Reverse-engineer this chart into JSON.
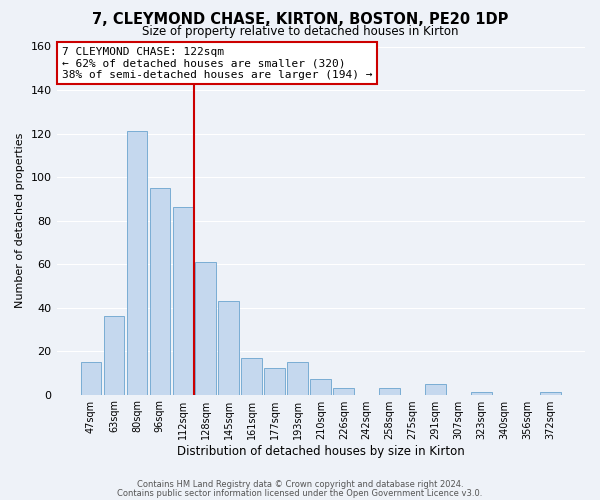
{
  "title": "7, CLEYMOND CHASE, KIRTON, BOSTON, PE20 1DP",
  "subtitle": "Size of property relative to detached houses in Kirton",
  "xlabel": "Distribution of detached houses by size in Kirton",
  "ylabel": "Number of detached properties",
  "bar_color": "#c5d8ee",
  "bar_edge_color": "#7aadd4",
  "background_color": "#eef2f8",
  "plot_bg_color": "#eef2f8",
  "grid_color": "#ffffff",
  "bin_labels": [
    "47sqm",
    "63sqm",
    "80sqm",
    "96sqm",
    "112sqm",
    "128sqm",
    "145sqm",
    "161sqm",
    "177sqm",
    "193sqm",
    "210sqm",
    "226sqm",
    "242sqm",
    "258sqm",
    "275sqm",
    "291sqm",
    "307sqm",
    "323sqm",
    "340sqm",
    "356sqm",
    "372sqm"
  ],
  "bar_heights": [
    15,
    36,
    121,
    95,
    86,
    61,
    43,
    17,
    12,
    15,
    7,
    3,
    0,
    3,
    0,
    5,
    0,
    1,
    0,
    0,
    1
  ],
  "vline_x": 4.5,
  "vline_color": "#cc0000",
  "annotation_line1": "7 CLEYMOND CHASE: 122sqm",
  "annotation_line2": "← 62% of detached houses are smaller (320)",
  "annotation_line3": "38% of semi-detached houses are larger (194) →",
  "annotation_box_color": "#ffffff",
  "annotation_box_edge": "#cc0000",
  "ylim": [
    0,
    160
  ],
  "yticks": [
    0,
    20,
    40,
    60,
    80,
    100,
    120,
    140,
    160
  ],
  "footer_line1": "Contains HM Land Registry data © Crown copyright and database right 2024.",
  "footer_line2": "Contains public sector information licensed under the Open Government Licence v3.0."
}
